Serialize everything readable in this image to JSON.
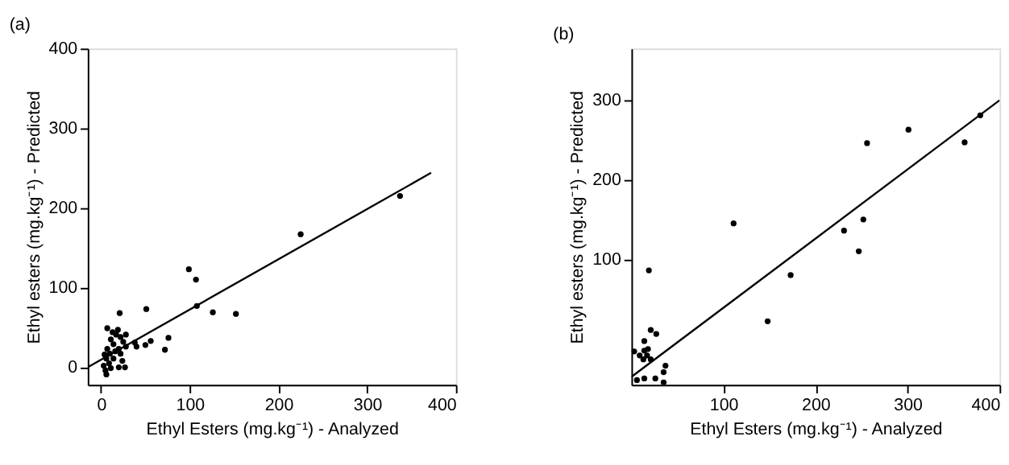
{
  "chart_data": [
    {
      "type": "scatter",
      "title": "(a)",
      "xlabel": "Ethyl Esters (mg.kg⁻¹) - Analyzed",
      "ylabel": "Ethyl esters (mg.kg⁻¹) - Predicted",
      "xlim": [
        -15,
        400
      ],
      "ylim": [
        -22,
        400
      ],
      "xticks": [
        0,
        100,
        200,
        300,
        400
      ],
      "yticks": [
        0,
        100,
        200,
        300,
        400
      ],
      "grid": false,
      "marker": "circle",
      "series": [
        {
          "color": "#000000",
          "x": [
            99,
            107,
            108,
            126,
            152,
            51,
            21,
            7,
            76,
            56,
            50,
            72,
            38,
            40,
            27,
            20,
            6,
            3,
            11,
            14,
            17,
            22,
            25,
            28,
            20,
            10,
            6,
            14,
            9,
            22,
            16,
            7,
            11,
            5,
            28,
            24,
            4,
            19,
            13,
            225,
            337
          ],
          "values": [
            123,
            110,
            77,
            69,
            67,
            73,
            68,
            49,
            37,
            33,
            28,
            22,
            31,
            26,
            0,
            0,
            -9,
            2,
            35,
            29,
            41,
            38,
            32,
            41,
            23,
            17,
            11,
            11,
            5,
            17,
            20,
            23,
            -1,
            -4,
            26,
            8,
            16,
            47,
            44,
            167,
            215
          ]
        },
        {
          "type": "line",
          "marker": "none",
          "color": "#000000",
          "x": [
            -15,
            372
          ],
          "values": [
            0,
            244
          ]
        }
      ]
    },
    {
      "type": "scatter",
      "title": "(b)",
      "xlabel": "Ethyl Esters (mg.kg⁻¹) - Analyzed",
      "ylabel": "Ethyl esters (mg.kg⁻¹) - Predicted",
      "xlim": [
        0,
        400
      ],
      "ylim": [
        -58,
        365
      ],
      "xticks": [
        100,
        200,
        300,
        400
      ],
      "yticks": [
        100,
        200,
        300
      ],
      "grid": false,
      "marker": "circle",
      "series": [
        {
          "color": "#000000",
          "x": [
            19,
            21,
            27,
            14,
            9,
            14,
            17,
            18,
            13,
            21,
            3,
            37,
            35,
            26,
            14,
            6,
            35,
            148,
            173,
            231,
            247,
            252,
            256,
            301,
            362,
            379,
            111
          ],
          "values": [
            86,
            11,
            6,
            -3,
            -21,
            -15,
            -21,
            -13,
            -26,
            -26,
            -16,
            -34,
            -42,
            -50,
            -50,
            -52,
            -55,
            22,
            80,
            136,
            110,
            150,
            246,
            263,
            247,
            281,
            145
          ]
        },
        {
          "type": "line",
          "marker": "none",
          "color": "#000000",
          "x": [
            0,
            400
          ],
          "values": [
            -48,
            300
          ]
        }
      ]
    }
  ]
}
